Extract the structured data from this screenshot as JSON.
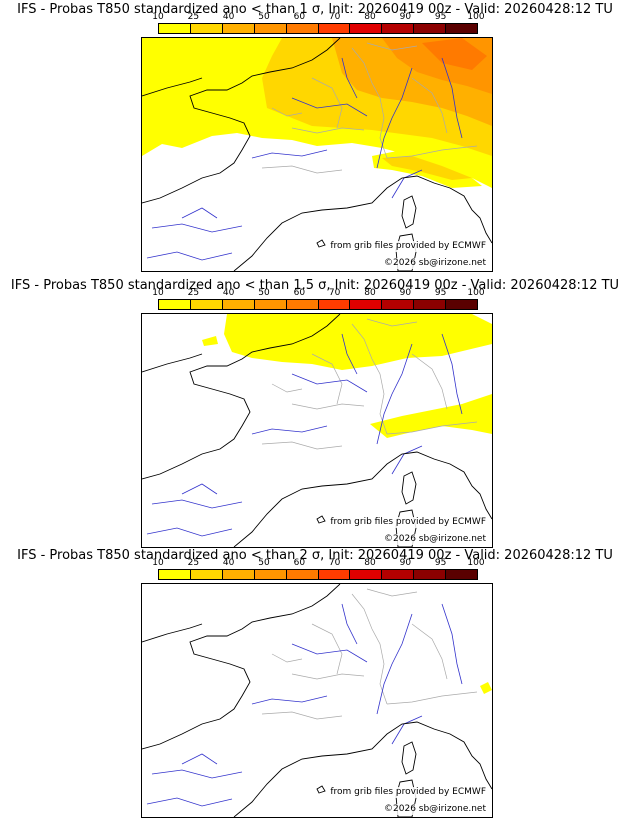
{
  "panels": [
    {
      "title": "IFS - Probas T850  standardized ano < than 1 σ, Init: 20260419 00z - Valid: 20260428:12 TU",
      "source_note": "from grib files provided by ECMWF",
      "copyright": "©2026 sb@irizone.net"
    },
    {
      "title": "IFS - Probas T850  standardized ano < than 1.5 σ, Init: 20260419 00z - Valid: 20260428:12 TU",
      "source_note": "from grib files provided by ECMWF",
      "copyright": "©2026 sb@irizone.net"
    },
    {
      "title": "IFS - Probas T850  standardized ano < than 2 σ, Init: 20260419 00z - Valid: 20260428:12 TU",
      "source_note": "from grib files provided by ECMWF",
      "copyright": "©2026 sb@irizone.net"
    }
  ],
  "colorbar": {
    "ticks": [
      "10",
      "25",
      "40",
      "50",
      "60",
      "70",
      "80",
      "90",
      "95",
      "100"
    ],
    "colors": [
      "#ffff00",
      "#ffd700",
      "#ffb000",
      "#ff9500",
      "#ff7a00",
      "#ff3c00",
      "#e00000",
      "#b40000",
      "#8b0000",
      "#5a0000"
    ]
  },
  "colors": {
    "coast": "#000000",
    "rivers": "#3333cc",
    "borders": "#aaaaaa"
  }
}
